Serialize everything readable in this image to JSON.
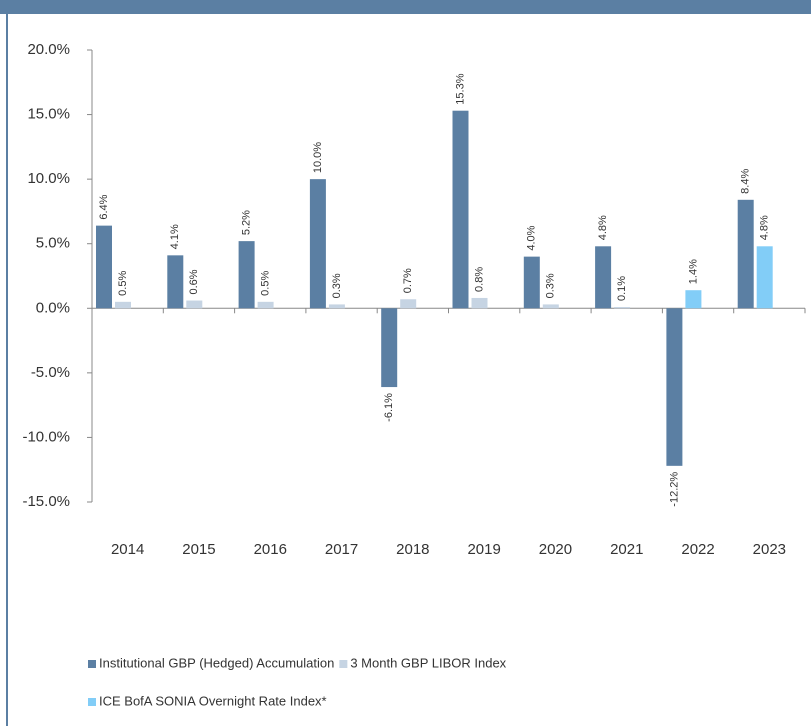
{
  "chart_data": {
    "type": "bar",
    "categories": [
      "2014",
      "2015",
      "2016",
      "2017",
      "2018",
      "2019",
      "2020",
      "2021",
      "2022",
      "2023"
    ],
    "series": [
      {
        "name": "Institutional GBP (Hedged) Accumulation",
        "color": "#5b7fa3",
        "values": [
          6.4,
          4.1,
          5.2,
          10,
          -6.1,
          15.3,
          4,
          4.8,
          -12.2,
          8.4
        ],
        "value_labels": [
          "6.4%",
          "4.1%",
          "5.2%",
          "10.0%",
          "-6.1%",
          "15.3%",
          "4.0%",
          "4.8%",
          "-12.2%",
          "8.4%"
        ]
      },
      {
        "name": "3 Month GBP LIBOR Index",
        "color": "#c6d4e3",
        "values": [
          0.5,
          0.6,
          0.5,
          0.3,
          0.7,
          0.8,
          0.3,
          0.1,
          null,
          null
        ],
        "value_labels": [
          "0.5%",
          "0.6%",
          "0.5%",
          "0.3%",
          "0.7%",
          "0.8%",
          "0.3%",
          "0.1%",
          null,
          null
        ]
      },
      {
        "name": "ICE BofA SONIA Overnight Rate Index*",
        "color": "#82cdf7",
        "values": [
          null,
          null,
          null,
          null,
          null,
          null,
          null,
          null,
          1.4,
          4.8
        ],
        "value_labels": [
          null,
          null,
          null,
          null,
          null,
          null,
          null,
          null,
          "1.4%",
          "4.8%"
        ]
      }
    ],
    "ylim": [
      -15,
      20
    ],
    "yticks": [
      {
        "value": -15,
        "label": "-15.0%"
      },
      {
        "value": -10,
        "label": "-10.0%"
      },
      {
        "value": -5,
        "label": "-5.0%"
      },
      {
        "value": 0,
        "label": "0.0%"
      },
      {
        "value": 5,
        "label": "5.0%"
      },
      {
        "value": 10,
        "label": "10.0%"
      },
      {
        "value": 15,
        "label": "15.0%"
      },
      {
        "value": 20,
        "label": "20.0%"
      }
    ],
    "legend": "bottom"
  }
}
